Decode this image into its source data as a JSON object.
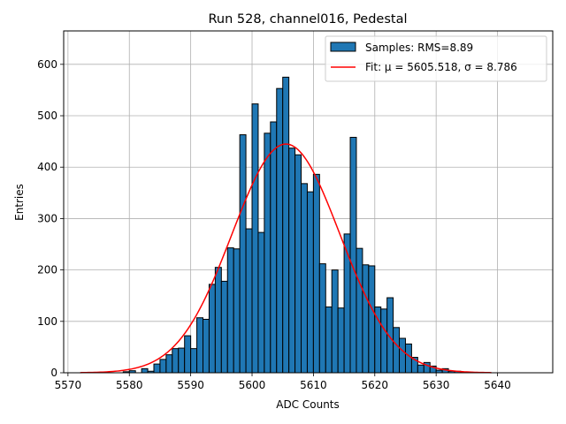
{
  "chart_data": {
    "type": "bar",
    "title": "Run 528, channel016, Pedestal",
    "xlabel": "ADC Counts",
    "ylabel": "Entries",
    "xlim": [
      5569.3,
      5649.0
    ],
    "ylim": [
      0,
      665
    ],
    "grid": true,
    "legend_position": "upper right",
    "xticks": [
      5570,
      5580,
      5590,
      5600,
      5610,
      5620,
      5630,
      5640
    ],
    "yticks": [
      0,
      100,
      200,
      300,
      400,
      500,
      600
    ],
    "bin_width": 1,
    "bins": {
      "name": "Samples: RMS=8.89",
      "x": [
        5579,
        5580,
        5581,
        5582,
        5583,
        5584,
        5585,
        5586,
        5587,
        5588,
        5589,
        5590,
        5591,
        5592,
        5593,
        5594,
        5595,
        5596,
        5597,
        5598,
        5599,
        5600,
        5601,
        5602,
        5603,
        5604,
        5605,
        5606,
        5607,
        5608,
        5609,
        5610,
        5611,
        5612,
        5613,
        5614,
        5615,
        5616,
        5617,
        5618,
        5619,
        5620,
        5621,
        5622,
        5623,
        5624,
        5625,
        5626,
        5627,
        5628,
        5629,
        5630,
        5631,
        5632,
        5633,
        5634,
        5635,
        5636
      ],
      "values": [
        2,
        4,
        0,
        8,
        3,
        17,
        26,
        35,
        47,
        48,
        72,
        47,
        107,
        104,
        172,
        205,
        178,
        243,
        241,
        463,
        280,
        523,
        273,
        466,
        488,
        553,
        575,
        437,
        424,
        368,
        352,
        386,
        212,
        128,
        200,
        126,
        270,
        458,
        242,
        210,
        208,
        128,
        124,
        146,
        88,
        67,
        56,
        30,
        15,
        20,
        13,
        5,
        8,
        3,
        3,
        1,
        1,
        0
      ],
      "color": "#1f77b4",
      "edge_color": "#000000"
    },
    "fit": {
      "name": "Fit: μ = 5605.518, σ = 8.786",
      "mu": 5605.518,
      "sigma": 8.786,
      "amplitude": 445,
      "x_range": [
        5572,
        5639
      ],
      "color": "#ff0000"
    }
  }
}
